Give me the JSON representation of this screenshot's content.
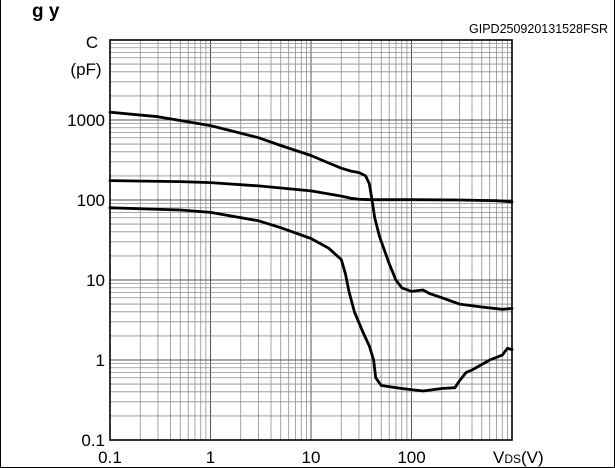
{
  "figure": {
    "header_fragment": "g      y",
    "code": "GIPD250920131528FSR"
  },
  "chart_data": {
    "type": "line",
    "x_scale": "log",
    "y_scale": "log",
    "xlim": [
      0.1,
      1000
    ],
    "ylim": [
      0.1,
      10000
    ],
    "grid": true,
    "ylabel_lines": [
      "C",
      "(pF)"
    ],
    "xlabel_parts": {
      "main": "V",
      "sub": "DS",
      "unit": "(V)"
    },
    "xticks": [
      {
        "value": 0.1,
        "label": "0.1"
      },
      {
        "value": 1,
        "label": "1"
      },
      {
        "value": 10,
        "label": "10"
      },
      {
        "value": 100,
        "label": "100"
      }
    ],
    "yticks": [
      {
        "value": 0.1,
        "label": "0.1"
      },
      {
        "value": 1,
        "label": "1"
      },
      {
        "value": 10,
        "label": "10"
      },
      {
        "value": 100,
        "label": "100"
      },
      {
        "value": 1000,
        "label": "1000"
      }
    ],
    "series": [
      {
        "points": [
          [
            0.1,
            1250
          ],
          [
            0.3,
            1100
          ],
          [
            1,
            850
          ],
          [
            3,
            600
          ],
          [
            5,
            480
          ],
          [
            10,
            360
          ],
          [
            15,
            290
          ],
          [
            20,
            250
          ],
          [
            25,
            230
          ],
          [
            30,
            220
          ],
          [
            35,
            200
          ],
          [
            38,
            160
          ],
          [
            40,
            110
          ],
          [
            43,
            60
          ],
          [
            48,
            35
          ],
          [
            60,
            16
          ],
          [
            70,
            10
          ],
          [
            80,
            8
          ],
          [
            100,
            7.2
          ],
          [
            130,
            7.5
          ],
          [
            150,
            6.8
          ],
          [
            200,
            6
          ],
          [
            300,
            5
          ],
          [
            500,
            4.6
          ],
          [
            800,
            4.3
          ],
          [
            1000,
            4.4
          ]
        ]
      },
      {
        "points": [
          [
            0.1,
            175
          ],
          [
            0.5,
            170
          ],
          [
            1,
            165
          ],
          [
            3,
            150
          ],
          [
            10,
            130
          ],
          [
            20,
            112
          ],
          [
            25,
            105
          ],
          [
            30,
            102
          ],
          [
            40,
            101
          ],
          [
            100,
            101
          ],
          [
            300,
            100
          ],
          [
            700,
            98
          ],
          [
            1000,
            95
          ]
        ]
      },
      {
        "points": [
          [
            0.1,
            80
          ],
          [
            0.5,
            75
          ],
          [
            1,
            70
          ],
          [
            3,
            55
          ],
          [
            5,
            45
          ],
          [
            10,
            33
          ],
          [
            15,
            25
          ],
          [
            20,
            18
          ],
          [
            22,
            12
          ],
          [
            24,
            7
          ],
          [
            27,
            4
          ],
          [
            33,
            2.2
          ],
          [
            38,
            1.5
          ],
          [
            42,
            1
          ],
          [
            44,
            0.6
          ],
          [
            50,
            0.48
          ],
          [
            80,
            0.44
          ],
          [
            130,
            0.41
          ],
          [
            200,
            0.44
          ],
          [
            270,
            0.45
          ],
          [
            300,
            0.55
          ],
          [
            350,
            0.7
          ],
          [
            400,
            0.75
          ],
          [
            600,
            1
          ],
          [
            800,
            1.15
          ],
          [
            900,
            1.4
          ],
          [
            1000,
            1.35
          ]
        ]
      }
    ]
  }
}
